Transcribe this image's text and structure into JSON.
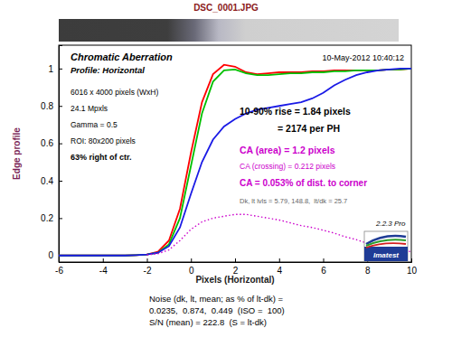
{
  "chart_data": {
    "type": "line",
    "title": "DSC_0001.JPG",
    "xlabel": "Pixels (Horizontal)",
    "ylabel": "Edge profile",
    "x": [
      -6,
      -5.5,
      -5,
      -4.5,
      -4,
      -3.5,
      -3,
      -2.5,
      -2,
      -1.5,
      -1,
      -0.5,
      0,
      0.5,
      1,
      1.5,
      2,
      2.5,
      3,
      3.5,
      4,
      4.5,
      5,
      5.5,
      6,
      6.5,
      7,
      7.5,
      8,
      8.5,
      9,
      9.5,
      10
    ],
    "series": [
      {
        "color": "#ff0000",
        "values": [
          0,
          0,
          0,
          0,
          0,
          0,
          0,
          0.002,
          0.005,
          0.02,
          0.08,
          0.25,
          0.55,
          0.82,
          0.97,
          1.02,
          1.01,
          0.98,
          0.97,
          0.975,
          0.98,
          0.98,
          0.98,
          0.985,
          0.985,
          0.99,
          0.99,
          0.99,
          0.99,
          0.99,
          0.995,
          0.995,
          1.0
        ]
      },
      {
        "color": "#00c000",
        "values": [
          0,
          0,
          0,
          0,
          0,
          0,
          0,
          0.002,
          0.005,
          0.015,
          0.06,
          0.2,
          0.48,
          0.76,
          0.93,
          0.99,
          0.995,
          0.975,
          0.965,
          0.965,
          0.97,
          0.975,
          0.975,
          0.98,
          0.98,
          0.985,
          0.985,
          0.99,
          0.99,
          0.99,
          0.995,
          0.995,
          1.0
        ]
      },
      {
        "color": "#1a1ae6",
        "values": [
          0,
          0,
          0,
          0,
          0,
          0,
          0,
          0.002,
          0.005,
          0.015,
          0.05,
          0.15,
          0.33,
          0.5,
          0.62,
          0.69,
          0.73,
          0.76,
          0.78,
          0.79,
          0.8,
          0.81,
          0.82,
          0.84,
          0.87,
          0.91,
          0.94,
          0.965,
          0.98,
          0.99,
          0.995,
          1.0,
          1.0
        ]
      },
      {
        "color": "#cc00cc",
        "line_style": "dotted",
        "values": [
          null,
          null,
          null,
          null,
          null,
          null,
          null,
          null,
          0.003,
          0.01,
          0.03,
          0.08,
          0.14,
          0.18,
          0.2,
          0.21,
          0.22,
          0.22,
          0.21,
          0.2,
          0.19,
          0.175,
          0.16,
          0.15,
          0.135,
          0.12,
          0.1,
          0.085,
          0.065,
          0.05,
          0.04,
          0.03,
          0.02
        ]
      }
    ],
    "xlim": [
      -6,
      10
    ],
    "xticks": [
      -6,
      -4,
      -2,
      0,
      2,
      4,
      6,
      8,
      10
    ],
    "ylim": [
      -0.035,
      1.125
    ],
    "yticks": [
      0,
      0.2,
      0.4,
      0.6,
      0.8,
      1
    ],
    "annotations": [
      "Chromatic Aberration",
      "Profile: Horizontal",
      "10-May-2012 10:40:12",
      "6016 x 4000 pixels (WxH)",
      "24.1 Mpxls",
      "Gamma = 0.5",
      "ROI: 80x200 pixels",
      "63% right of ctr.",
      "10-90% rise = 1.84 pixels",
      "= 2174 per PH",
      "CA (area) = 1.2 pixels",
      "CA (crossing) = 0.212 pixels",
      "CA = 0.053% of dist. to corner",
      "Dk, lt lvls = 5.79, 148.8,  lt/dk = 25.7",
      "2.2.3 Pro",
      "Imatest"
    ],
    "footer": [
      "Noise (dk, lt, mean; as % of lt-dk) =",
      "0.0235,  0.874,  0.449  (ISO =  100)",
      "S/N (mean) = 222.8  (S = lt-dk)"
    ]
  }
}
